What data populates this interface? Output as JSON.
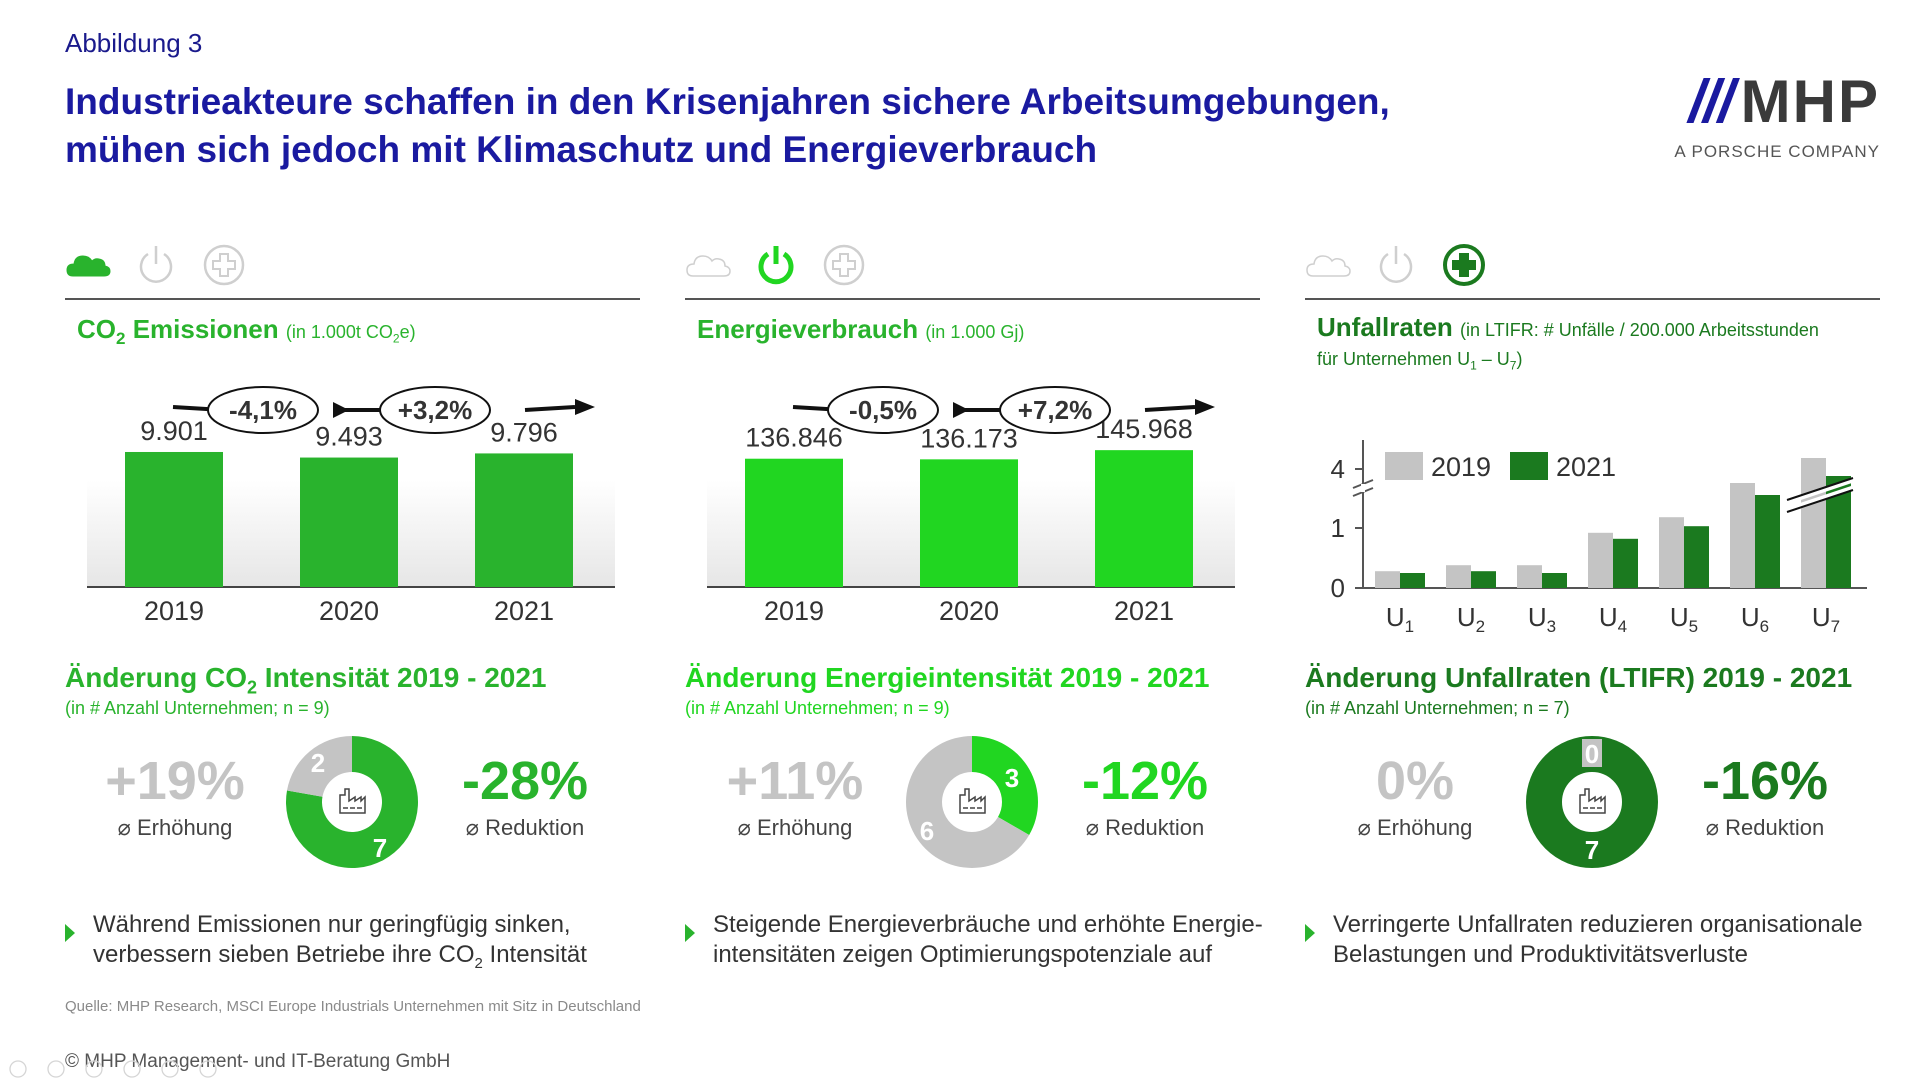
{
  "figure_label": "Abbildung 3",
  "title_line1": "Industrieakteure schaffen in den Krisenjahren sichere Arbeitsumgebungen,",
  "title_line2": "mühen sich jedoch mit Klimaschutz und Energieverbrauch",
  "logo": {
    "bars": "///",
    "name": "MHP",
    "sub": "A PORSCHE COMPANY"
  },
  "colors": {
    "green_dark": "#1b7a1f",
    "green_mid": "#29b32d",
    "green_bright": "#21d621",
    "grey": "#c4c4c4",
    "navy": "#1a1aa0",
    "icon_off": "#cfcfcf"
  },
  "panels": [
    {
      "icons": [
        "cloud-icon",
        "power-icon",
        "plus-icon"
      ],
      "active_icon": 0,
      "chart_title": "CO",
      "chart_title_sub": "2",
      "chart_title_rest": " Emissionen ",
      "chart_unit": "(in 1.000t CO",
      "chart_unit_sub": "2",
      "chart_unit_rest": "e)",
      "changes": [
        "-4,1%",
        "+3,2%"
      ],
      "chart_data": {
        "type": "bar",
        "categories": [
          "2019",
          "2020",
          "2021"
        ],
        "values": [
          9901,
          9493,
          9796
        ],
        "data_labels": [
          "9.901",
          "9.493",
          "9.796"
        ],
        "title": "CO2 Emissionen (in 1.000t CO2e)",
        "ylim": [
          0,
          11000
        ],
        "color": "#29b32d"
      },
      "section_title": "Änderung CO",
      "section_title_sub": "2",
      "section_title_rest": " Intensität 2019 - 2021",
      "section_sub": "(in # Anzahl Unternehmen; n = 9)",
      "increase_value": "+19%",
      "increase_label": "⌀ Erhöhung",
      "reduction_value": "-28%",
      "reduction_label": "⌀ Reduktion",
      "donut": {
        "segments": [
          {
            "label": "2",
            "value": 2,
            "color": "#c4c4c4"
          },
          {
            "label": "7",
            "value": 7,
            "color": "#29b32d"
          }
        ]
      },
      "bullet_line1": "Während Emissionen nur geringfügig sinken,",
      "bullet_line2": "verbessern sieben Betriebe ihre CO",
      "bullet_line2_sub": "2",
      "bullet_line2_rest": " Intensität"
    },
    {
      "icons": [
        "cloud-icon",
        "power-icon",
        "plus-icon"
      ],
      "active_icon": 1,
      "chart_title": "Energieverbrauch ",
      "chart_unit": "(in 1.000 Gj)",
      "changes": [
        "-0,5%",
        "+7,2%"
      ],
      "chart_data": {
        "type": "bar",
        "categories": [
          "2019",
          "2020",
          "2021"
        ],
        "values": [
          136846,
          136173,
          145968
        ],
        "data_labels": [
          "136.846",
          "136.173",
          "145.968"
        ],
        "title": "Energieverbrauch (in 1.000 Gj)",
        "ylim": [
          0,
          160000
        ],
        "color": "#21d621"
      },
      "section_title": "Änderung Energieintensität 2019 - 2021",
      "section_sub": "(in # Anzahl Unternehmen; n = 9)",
      "increase_value": "+11%",
      "increase_label": "⌀ Erhöhung",
      "reduction_value": "-12%",
      "reduction_label": "⌀ Reduktion",
      "donut": {
        "segments": [
          {
            "label": "3",
            "value": 3,
            "color": "#21d621"
          },
          {
            "label": "6",
            "value": 6,
            "color": "#c4c4c4"
          }
        ]
      },
      "bullet_line1": "Steigende Energieverbräuche und erhöhte Energie-",
      "bullet_line2": "intensitäten zeigen Optimierungspotenziale auf"
    },
    {
      "icons": [
        "cloud-icon",
        "power-icon",
        "plus-icon"
      ],
      "active_icon": 2,
      "chart_title": "Unfallraten ",
      "chart_unit": "(in LTIFR: # Unfälle / 200.000 Arbeitsstunden",
      "chart_unit_line2": "für Unternehmen U",
      "chart_unit_line2_sub1": "1",
      "chart_unit_line2_mid": " – U",
      "chart_unit_line2_sub2": "7",
      "chart_unit_line2_end": ")",
      "chart_data": {
        "type": "bar",
        "categories": [
          "U1",
          "U2",
          "U3",
          "U4",
          "U5",
          "U6",
          "U7"
        ],
        "category_base": [
          "U",
          "U",
          "U",
          "U",
          "U",
          "U",
          "U"
        ],
        "category_sub": [
          "1",
          "2",
          "3",
          "4",
          "5",
          "6",
          "7"
        ],
        "series": [
          {
            "name": "2019",
            "values": [
              0.28,
              0.38,
              0.38,
              0.92,
              1.18,
              1.75,
              4.4
            ],
            "color": "#c4c4c4"
          },
          {
            "name": "2021",
            "values": [
              0.25,
              0.28,
              0.25,
              0.82,
              1.03,
              1.55,
              4.05
            ],
            "color": "#1b7a1f"
          }
        ],
        "yticks": [
          "0",
          "1",
          "4"
        ],
        "axis_break": true,
        "legend": "top-left"
      },
      "section_title": "Änderung Unfallraten (LTIFR) 2019 - 2021",
      "section_sub": "(in # Anzahl Unternehmen; n = 7)",
      "increase_value": "0%",
      "increase_label": "⌀ Erhöhung",
      "reduction_value": "-16%",
      "reduction_label": "⌀ Reduktion",
      "donut": {
        "segments": [
          {
            "label": "0",
            "value": 0,
            "color": "#c4c4c4"
          },
          {
            "label": "7",
            "value": 7,
            "color": "#1b7a1f"
          }
        ]
      },
      "bullet_line1": "Verringerte Unfallraten reduzieren organisationale",
      "bullet_line2": "Belastungen und Produktivitätsverluste"
    }
  ],
  "source": "Quelle: MHP Research, MSCI Europe Industrials Unternehmen mit Sitz in Deutschland",
  "copyright": "© MHP Management- und IT-Beratung GmbH"
}
